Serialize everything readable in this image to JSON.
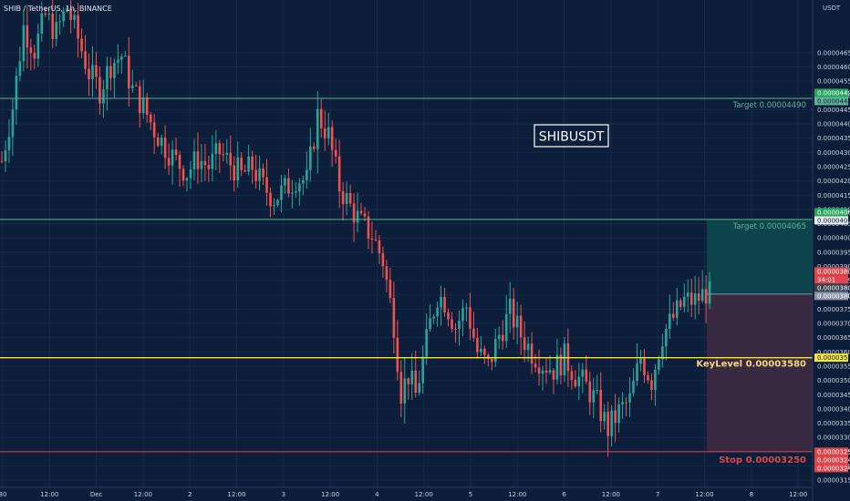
{
  "header": {
    "title": "SHIB / TetherUS, 1h, BINANCE"
  },
  "colors": {
    "background": "#0c1e3a",
    "up": "#26a69a",
    "down": "#ef5350",
    "target_line": "#5fb39a",
    "keylevel": "#f5e63b",
    "stop": "#e0454a",
    "profit_zone": "#0e4a4f",
    "loss_zone": "#3e2a42"
  },
  "chart_data": {
    "type": "candlestick",
    "symbol_label": "SHIBUSDT",
    "y_axis_unit": "USDT",
    "ylim": [
      3.125e-05,
      4.835e-05
    ],
    "y_ticks": [
      "0.00004650",
      "0.00004600",
      "0.00004550",
      "0.00004500",
      "0.00004450",
      "0.00004400",
      "0.00004350",
      "0.00004300",
      "0.00004250",
      "0.00004200",
      "0.00004150",
      "0.00004100",
      "0.00004050",
      "0.00004000",
      "0.00003950",
      "0.00003900",
      "0.00003850",
      "0.00003800",
      "0.00003750",
      "0.00003700",
      "0.00003650",
      "0.00003600",
      "0.00003550",
      "0.00003500",
      "0.00003450",
      "0.00003400",
      "0.00003350",
      "0.00003300",
      "0.00003250",
      "0.00003200",
      "0.00003150"
    ],
    "x_ticks": [
      "30",
      "12:00",
      "Dec",
      "12:00",
      "2",
      "12:00",
      "3",
      "12:00",
      "4",
      "12:00",
      "5",
      "12:00",
      "6",
      "12:00",
      "7",
      "12:00",
      "8",
      "12:00"
    ],
    "levels": [
      {
        "label": "Target 0.00004490",
        "value": 4.49e-05,
        "tag": "0.00004490",
        "tag2": "0.00004488"
      },
      {
        "label": "Target 0.00004065",
        "value": 4.065e-05,
        "tag": "0.00004066",
        "tag2": "0.00004065"
      },
      {
        "label": "KeyLevel 0.00003580",
        "value": 3.58e-05,
        "tag": "0.00003580"
      },
      {
        "label": "Stop 0.00003250",
        "value": 3.25e-05,
        "tag": "0.00003250",
        "tag2": "0.00003249",
        "tag3": "0.00003249"
      }
    ],
    "current_price": {
      "value": 3.803e-05,
      "tag": "0.00003803",
      "countdown": "34:01",
      "tag2": "0.00003803",
      "tag3": "0.00003803"
    },
    "anchors": [
      [
        0,
        4.27e-05
      ],
      [
        3,
        4.46e-05
      ],
      [
        6,
        4.74e-05
      ],
      [
        9,
        4.66e-05
      ],
      [
        12,
        4.78e-05
      ],
      [
        15,
        4.72e-05
      ],
      [
        18,
        4.81e-05
      ],
      [
        21,
        4.7e-05
      ],
      [
        24,
        4.58e-05
      ],
      [
        27,
        4.52e-05
      ],
      [
        30,
        4.61e-05
      ],
      [
        33,
        4.64e-05
      ],
      [
        36,
        4.52e-05
      ],
      [
        39,
        4.46e-05
      ],
      [
        42,
        4.38e-05
      ],
      [
        45,
        4.32e-05
      ],
      [
        48,
        4.27e-05
      ],
      [
        51,
        4.23e-05
      ],
      [
        54,
        4.28e-05
      ],
      [
        57,
        4.25e-05
      ],
      [
        60,
        4.3e-05
      ],
      [
        63,
        4.26e-05
      ],
      [
        66,
        4.22e-05
      ],
      [
        69,
        4.25e-05
      ],
      [
        72,
        4.18e-05
      ],
      [
        75,
        4.14e-05
      ],
      [
        78,
        4.17e-05
      ],
      [
        81,
        4.21e-05
      ],
      [
        84,
        4.2e-05
      ],
      [
        87,
        4.43e-05
      ],
      [
        90,
        4.36e-05
      ],
      [
        93,
        4.18e-05
      ],
      [
        96,
        4.11e-05
      ],
      [
        99,
        4.05e-05
      ],
      [
        102,
        4.01e-05
      ],
      [
        105,
        3.92e-05
      ],
      [
        108,
        3.7e-05
      ],
      [
        110,
        3.46e-05
      ],
      [
        112,
        3.52e-05
      ],
      [
        114,
        3.45e-05
      ],
      [
        116,
        3.57e-05
      ],
      [
        118,
        3.7e-05
      ],
      [
        120,
        3.8e-05
      ],
      [
        122,
        3.78e-05
      ],
      [
        125,
        3.69e-05
      ],
      [
        128,
        3.76e-05
      ],
      [
        131,
        3.6e-05
      ],
      [
        134,
        3.55e-05
      ],
      [
        137,
        3.66e-05
      ],
      [
        140,
        3.74e-05
      ],
      [
        143,
        3.66e-05
      ],
      [
        146,
        3.6e-05
      ],
      [
        149,
        3.56e-05
      ],
      [
        152,
        3.54e-05
      ],
      [
        155,
        3.58e-05
      ],
      [
        158,
        3.52e-05
      ],
      [
        161,
        3.48e-05
      ],
      [
        164,
        3.42e-05
      ],
      [
        167,
        3.33e-05
      ],
      [
        170,
        3.39e-05
      ],
      [
        173,
        3.43e-05
      ],
      [
        176,
        3.58e-05
      ],
      [
        179,
        3.5e-05
      ],
      [
        182,
        3.66e-05
      ],
      [
        185,
        3.72e-05
      ],
      [
        188,
        3.78e-05
      ],
      [
        191,
        3.78e-05
      ],
      [
        194,
        3.81e-05
      ],
      [
        195,
        3.8e-05
      ]
    ]
  }
}
